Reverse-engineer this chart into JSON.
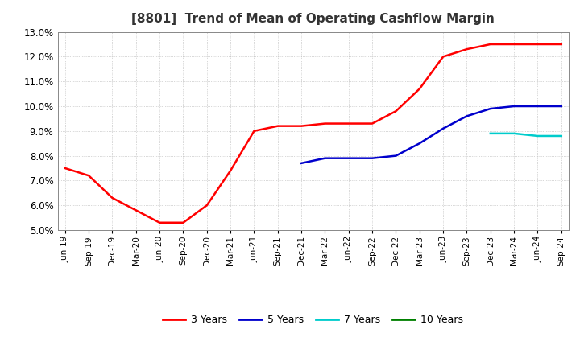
{
  "title": "[8801]  Trend of Mean of Operating Cashflow Margin",
  "ylim": [
    0.05,
    0.13
  ],
  "yticks": [
    0.05,
    0.06,
    0.07,
    0.08,
    0.09,
    0.1,
    0.11,
    0.12,
    0.13
  ],
  "background_color": "#ffffff",
  "grid_color": "#aaaaaa",
  "series": {
    "3 Years": {
      "color": "#ff0000",
      "x": [
        0,
        1,
        2,
        3,
        4,
        5,
        6,
        7,
        8,
        9,
        10,
        11,
        12,
        13,
        14,
        15,
        16,
        17,
        18,
        19,
        20,
        21
      ],
      "y": [
        0.075,
        0.072,
        0.063,
        0.058,
        0.053,
        0.053,
        0.06,
        0.074,
        0.09,
        0.092,
        0.092,
        0.093,
        0.093,
        0.093,
        0.098,
        0.107,
        0.12,
        0.123,
        0.125,
        0.125,
        0.125,
        0.125
      ]
    },
    "5 Years": {
      "color": "#0000cc",
      "x": [
        10,
        11,
        12,
        13,
        14,
        15,
        16,
        17,
        18,
        19,
        20,
        21
      ],
      "y": [
        0.077,
        0.079,
        0.079,
        0.079,
        0.08,
        0.085,
        0.091,
        0.096,
        0.099,
        0.1,
        0.1,
        0.1
      ]
    },
    "7 Years": {
      "color": "#00cccc",
      "x": [
        18,
        19,
        20,
        21
      ],
      "y": [
        0.089,
        0.089,
        0.088,
        0.088
      ]
    },
    "10 Years": {
      "color": "#008000",
      "x": [],
      "y": []
    }
  },
  "xtick_labels": [
    "Jun-19",
    "Sep-19",
    "Dec-19",
    "Mar-20",
    "Jun-20",
    "Sep-20",
    "Dec-20",
    "Mar-21",
    "Jun-21",
    "Sep-21",
    "Dec-21",
    "Mar-22",
    "Jun-22",
    "Sep-22",
    "Dec-22",
    "Mar-23",
    "Jun-23",
    "Sep-23",
    "Dec-23",
    "Mar-24",
    "Jun-24",
    "Sep-24"
  ],
  "legend": [
    {
      "label": "3 Years",
      "color": "#ff0000"
    },
    {
      "label": "5 Years",
      "color": "#0000cc"
    },
    {
      "label": "7 Years",
      "color": "#00cccc"
    },
    {
      "label": "10 Years",
      "color": "#008000"
    }
  ],
  "title_fontsize": 11,
  "tick_fontsize": 7.5,
  "legend_fontsize": 9
}
